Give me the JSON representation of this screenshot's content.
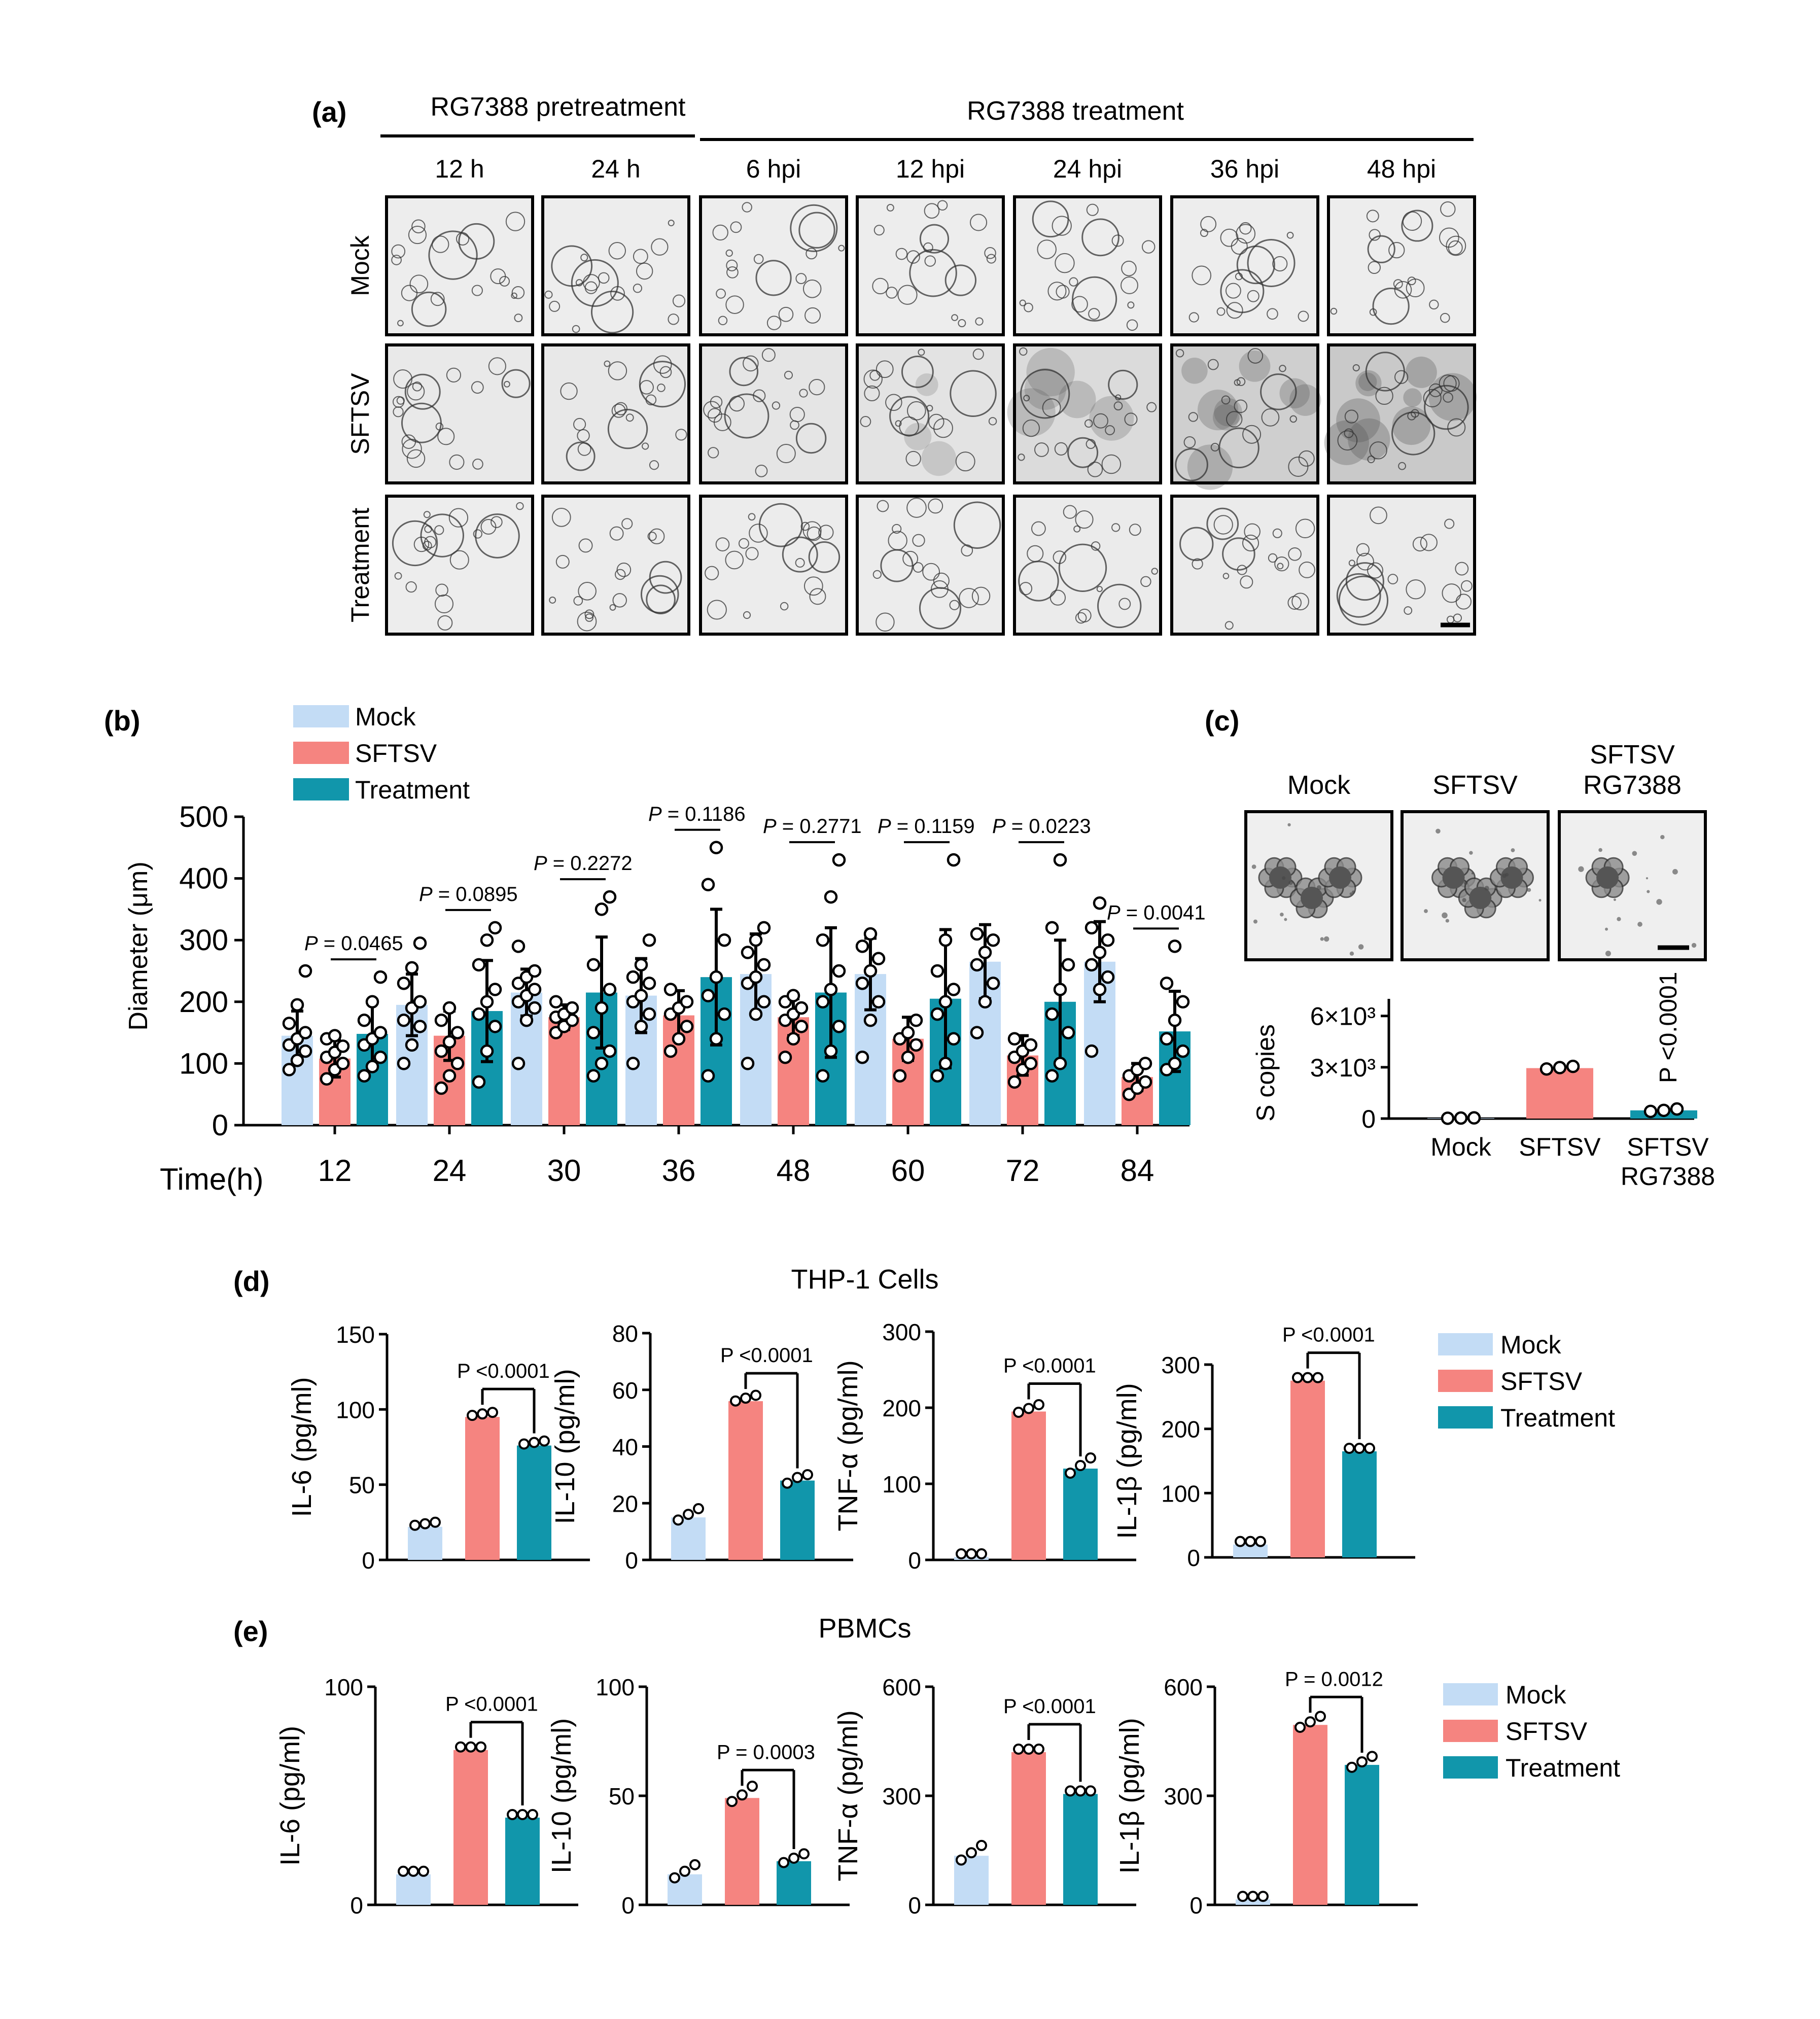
{
  "colors": {
    "mock": "#c3dcf5",
    "sftsv": "#f58480",
    "treatment": "#1196ab",
    "dot_fill": "#ffffff",
    "ink": "#000000"
  },
  "panel_a": {
    "label": "(a)",
    "pretreatment_label": "RG7388 pretreatment",
    "treatment_label": "RG7388 treatment",
    "columns": [
      "12 h",
      "24 h",
      "6 hpi",
      "12 hpi",
      "24 hpi",
      "36 hpi",
      "48 hpi"
    ],
    "rows": [
      "Mock",
      "SFTSV",
      "Treatment"
    ],
    "darkness": [
      [
        0.05,
        0.05,
        0.05,
        0.05,
        0.05,
        0.05,
        0.05
      ],
      [
        0.12,
        0.14,
        0.18,
        0.22,
        0.35,
        0.55,
        0.65
      ],
      [
        0.05,
        0.06,
        0.06,
        0.07,
        0.08,
        0.08,
        0.09
      ]
    ]
  },
  "chart_data": [
    {
      "id": "b",
      "type": "bar",
      "panel_label": "(b)",
      "ylabel": "Diameter (μm)",
      "xlabel": "Time(h)",
      "categories": [
        "12",
        "24",
        "30",
        "36",
        "48",
        "60",
        "72",
        "84"
      ],
      "ylim": [
        0,
        500
      ],
      "yticks": [
        0,
        100,
        200,
        300,
        400,
        500
      ],
      "legend": [
        "Mock",
        "SFTSV",
        "Treatment"
      ],
      "series": [
        {
          "name": "Mock",
          "values": [
            145,
            195,
            215,
            210,
            245,
            245,
            265,
            265
          ],
          "sd": [
            40,
            50,
            38,
            60,
            65,
            58,
            60,
            65
          ]
        },
        {
          "name": "SFTSV",
          "values": [
            108,
            145,
            175,
            178,
            175,
            140,
            113,
            78
          ],
          "sd": [
            30,
            40,
            20,
            40,
            30,
            35,
            32,
            22
          ]
        },
        {
          "name": "Treatment",
          "values": [
            148,
            185,
            215,
            240,
            215,
            205,
            200,
            152
          ],
          "sd": [
            50,
            82,
            90,
            110,
            105,
            112,
            100,
            65
          ]
        }
      ],
      "points": [
        [
          [
            90,
            105,
            120,
            130,
            140,
            150,
            165,
            195,
            250
          ],
          [
            75,
            90,
            100,
            110,
            118,
            128,
            140,
            145
          ],
          [
            80,
            95,
            110,
            130,
            140,
            150,
            170,
            200,
            240
          ]
        ],
        [
          [
            100,
            130,
            160,
            170,
            190,
            200,
            230,
            255,
            295
          ],
          [
            60,
            80,
            100,
            120,
            135,
            150,
            170,
            190
          ],
          [
            70,
            120,
            160,
            180,
            200,
            220,
            260,
            300,
            320
          ]
        ],
        [
          [
            100,
            170,
            190,
            200,
            210,
            220,
            230,
            240,
            250,
            290
          ],
          [
            150,
            160,
            170,
            175,
            180,
            190,
            200
          ],
          [
            80,
            100,
            120,
            150,
            190,
            220,
            260,
            350,
            370
          ]
        ],
        [
          [
            100,
            160,
            180,
            200,
            210,
            230,
            240,
            260,
            300
          ],
          [
            120,
            140,
            160,
            180,
            190,
            200,
            220
          ],
          [
            80,
            140,
            180,
            210,
            240,
            300,
            390,
            450
          ]
        ],
        [
          [
            100,
            180,
            200,
            230,
            240,
            260,
            280,
            300,
            320
          ],
          [
            110,
            140,
            160,
            170,
            180,
            190,
            200,
            210
          ],
          [
            80,
            120,
            160,
            200,
            220,
            250,
            300,
            370,
            430
          ]
        ],
        [
          [
            110,
            170,
            200,
            230,
            250,
            270,
            290,
            310
          ],
          [
            80,
            110,
            130,
            140,
            150,
            170
          ],
          [
            80,
            100,
            140,
            180,
            200,
            220,
            250,
            300,
            430
          ]
        ],
        [
          [
            150,
            200,
            230,
            260,
            280,
            300,
            310
          ],
          [
            70,
            90,
            100,
            110,
            120,
            130,
            140
          ],
          [
            80,
            100,
            150,
            180,
            220,
            260,
            320,
            430
          ]
        ],
        [
          [
            120,
            220,
            240,
            260,
            280,
            300,
            320,
            360
          ],
          [
            50,
            60,
            70,
            80,
            90,
            100
          ],
          [
            90,
            100,
            120,
            140,
            170,
            200,
            230,
            290
          ]
        ]
      ],
      "pvalues": [
        {
          "category": "12",
          "text": "0.0465"
        },
        {
          "category": "24",
          "text": "0.0895"
        },
        {
          "category": "30",
          "text": "0.2272"
        },
        {
          "category": "36",
          "text": "0.1186"
        },
        {
          "category": "48",
          "text": "0.2771"
        },
        {
          "category": "60",
          "text": "0.1159"
        },
        {
          "category": "72",
          "text": "0.0223"
        },
        {
          "category": "84",
          "text": "0.0041"
        }
      ]
    },
    {
      "id": "c",
      "type": "bar",
      "panel_label": "(c)",
      "ylabel": "S copies",
      "image_labels": [
        "Mock",
        "SFTSV",
        "SFTSV RG7388"
      ],
      "categories": [
        "Mock",
        "SFTSV",
        "SFTSV RG7388"
      ],
      "ylim": [
        0,
        7000
      ],
      "yticks": [
        0,
        3000,
        6000
      ],
      "ytick_labels": [
        "0",
        "3×10³",
        "6×10³"
      ],
      "values": [
        30,
        2950,
        480
      ],
      "points": [
        [
          20,
          30,
          40
        ],
        [
          2900,
          2980,
          3050
        ],
        [
          420,
          480,
          560
        ]
      ],
      "pvalue": "P <0.0001"
    },
    {
      "id": "d-il6",
      "type": "bar",
      "group": "d",
      "ylabel": "IL-6 (pg/ml)",
      "ylim": [
        0,
        150
      ],
      "yticks": [
        0,
        50,
        100,
        150
      ],
      "categories": [
        "Mock",
        "SFTSV",
        "Treatment"
      ],
      "values": [
        22,
        95,
        76
      ],
      "points": [
        [
          21,
          22,
          23
        ],
        [
          94,
          95,
          96
        ],
        [
          75,
          76,
          77
        ]
      ],
      "pvalue": "P <0.0001"
    },
    {
      "id": "d-il10",
      "type": "bar",
      "group": "d",
      "ylabel": "IL-10 (pg/ml)",
      "ylim": [
        0,
        80
      ],
      "yticks": [
        0,
        20,
        40,
        60,
        80
      ],
      "categories": [
        "Mock",
        "SFTSV",
        "Treatment"
      ],
      "values": [
        15,
        56,
        28
      ],
      "points": [
        [
          13,
          15,
          17
        ],
        [
          55,
          56,
          57
        ],
        [
          26,
          28,
          29
        ]
      ],
      "pvalue": "P <0.0001"
    },
    {
      "id": "d-tnfa",
      "type": "bar",
      "group": "d",
      "ylabel": "TNF-α (pg/ml)",
      "ylim": [
        0,
        300
      ],
      "yticks": [
        0,
        100,
        200,
        300
      ],
      "categories": [
        "Mock",
        "SFTSV",
        "Treatment"
      ],
      "values": [
        4,
        195,
        120
      ],
      "points": [
        [
          4,
          4,
          4
        ],
        [
          190,
          195,
          200
        ],
        [
          110,
          120,
          130
        ]
      ],
      "pvalue": "P <0.0001"
    },
    {
      "id": "d-il1b",
      "type": "bar",
      "group": "d",
      "ylabel": "IL-1β (pg/ml)",
      "ylim": [
        0,
        300
      ],
      "yticks": [
        0,
        100,
        200,
        300
      ],
      "categories": [
        "Mock",
        "SFTSV",
        "Treatment"
      ],
      "values": [
        20,
        275,
        165
      ],
      "points": [
        [
          20,
          20,
          20
        ],
        [
          275,
          275,
          275
        ],
        [
          165,
          165,
          165
        ]
      ],
      "pvalue": "P <0.0001"
    },
    {
      "id": "e-il6",
      "type": "bar",
      "group": "e",
      "ylabel": "IL-6 (pg/ml)",
      "ylim": [
        0,
        100
      ],
      "yticks": [
        0,
        100
      ],
      "categories": [
        "Mock",
        "SFTSV",
        "Treatment"
      ],
      "values": [
        14,
        71,
        40
      ],
      "points": [
        [
          14,
          14,
          14
        ],
        [
          71,
          71,
          71
        ],
        [
          40,
          40,
          40
        ]
      ],
      "pvalue": "P <0.0001"
    },
    {
      "id": "e-il10",
      "type": "bar",
      "group": "e",
      "ylabel": "IL-10 (pg/ml)",
      "ylim": [
        0,
        100
      ],
      "yticks": [
        0,
        50,
        100
      ],
      "categories": [
        "Mock",
        "SFTSV",
        "Treatment"
      ],
      "values": [
        14,
        49,
        20
      ],
      "points": [
        [
          11,
          14,
          17
        ],
        [
          46,
          49,
          53
        ],
        [
          18,
          20,
          22
        ]
      ],
      "pvalue": "P = 0.0003"
    },
    {
      "id": "e-tnfa",
      "type": "bar",
      "group": "e",
      "ylabel": "TNF-α (pg/ml)",
      "ylim": [
        0,
        600
      ],
      "yticks": [
        0,
        300,
        600
      ],
      "categories": [
        "Mock",
        "SFTSV",
        "Treatment"
      ],
      "values": [
        135,
        420,
        305
      ],
      "points": [
        [
          115,
          135,
          155
        ],
        [
          420,
          420,
          420
        ],
        [
          305,
          305,
          305
        ]
      ],
      "pvalue": "P <0.0001"
    },
    {
      "id": "e-il1b",
      "type": "bar",
      "group": "e",
      "ylabel": "IL-1β (pg/ml)",
      "ylim": [
        0,
        600
      ],
      "yticks": [
        0,
        300,
        600
      ],
      "categories": [
        "Mock",
        "SFTSV",
        "Treatment"
      ],
      "values": [
        15,
        495,
        385
      ],
      "points": [
        [
          15,
          15,
          15
        ],
        [
          480,
          495,
          510
        ],
        [
          370,
          385,
          400
        ]
      ],
      "pvalue": "P = 0.0012"
    }
  ],
  "panel_d": {
    "label": "(d)",
    "title": "THP-1 Cells",
    "legend": [
      "Mock",
      "SFTSV",
      "Treatment"
    ]
  },
  "panel_e": {
    "label": "(e)",
    "title": "PBMCs",
    "legend": [
      "Mock",
      "SFTSV",
      "Treatment"
    ]
  }
}
